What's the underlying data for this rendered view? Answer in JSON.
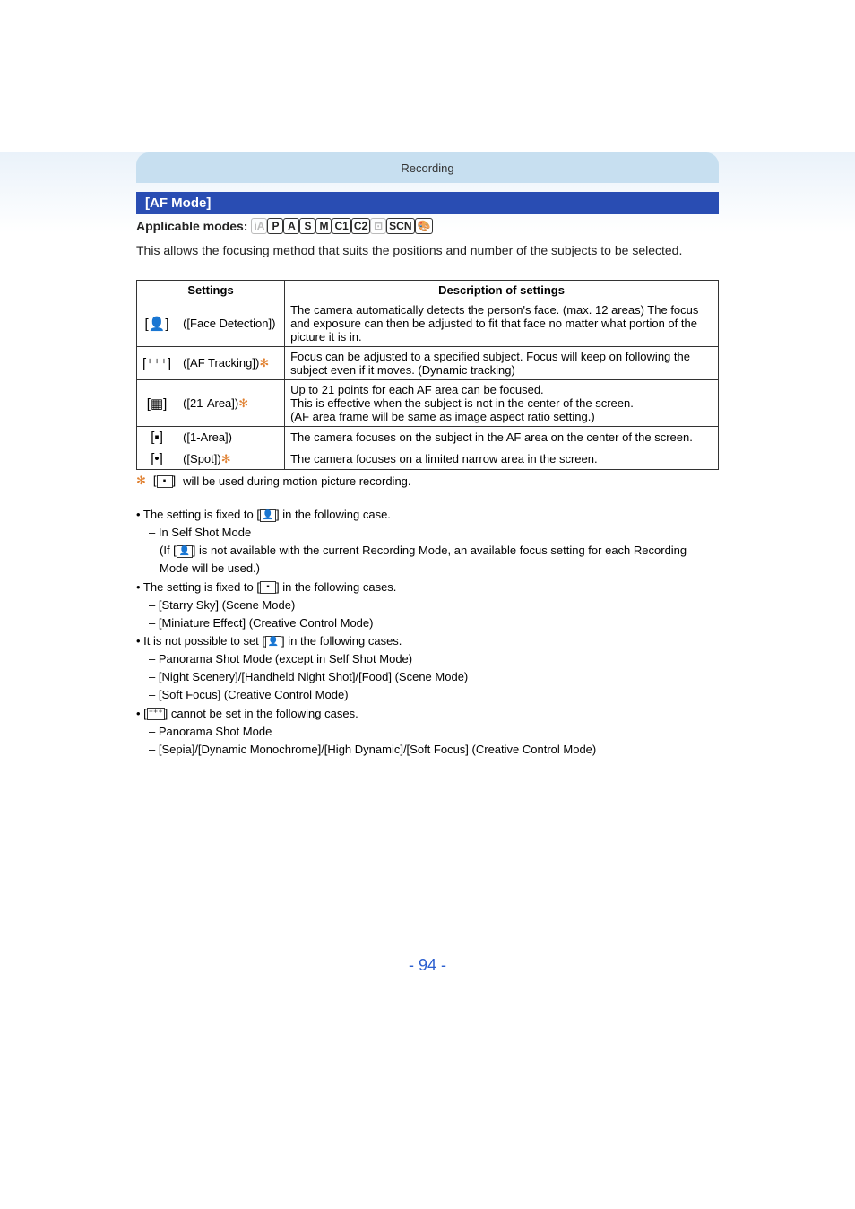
{
  "header": {
    "section": "Recording"
  },
  "title": "[AF Mode]",
  "modes": {
    "label": "Applicable modes:",
    "boxes": [
      {
        "text": "iA",
        "dim": true
      },
      {
        "text": "P",
        "dim": false
      },
      {
        "text": "A",
        "dim": false
      },
      {
        "text": "S",
        "dim": false
      },
      {
        "text": "M",
        "dim": false
      },
      {
        "text": "C1",
        "dim": false
      },
      {
        "text": "C2",
        "dim": false
      },
      {
        "text": "⊡",
        "dim": true
      },
      {
        "text": "SCN",
        "dim": false
      },
      {
        "text": "🎨",
        "dim": false
      }
    ]
  },
  "intro": "This allows the focusing method that suits the positions and number of the subjects to be selected.",
  "table": {
    "headers": [
      "Settings",
      "Description of settings"
    ],
    "rows": [
      {
        "icon": "[👤]",
        "icon_name": "face-detection-icon",
        "label": "([Face Detection])",
        "star": false,
        "desc": "The camera automatically detects the person's face. (max. 12 areas) The focus and exposure can then be adjusted to fit that face no matter what portion of the picture it is in."
      },
      {
        "icon": "[⁺⁺⁺]",
        "icon_name": "af-tracking-icon",
        "label": "([AF Tracking])",
        "star": true,
        "desc": "Focus can be adjusted to a specified subject. Focus will keep on following the subject even if it moves. (Dynamic tracking)"
      },
      {
        "icon": "[▦]",
        "icon_name": "21-area-icon",
        "label": "([21-Area])",
        "star": true,
        "desc": "Up to 21 points for each AF area can be focused.\nThis is effective when the subject is not in the center of the screen.\n(AF area frame will be same as image aspect ratio setting.)"
      },
      {
        "icon": "[▪]",
        "icon_name": "1-area-icon",
        "label": "([1-Area])",
        "star": false,
        "desc": "The camera focuses on the subject in the AF area on the center of the screen."
      },
      {
        "icon": "[•]",
        "icon_name": "spot-icon",
        "label": "([Spot])",
        "star": true,
        "desc": "The camera focuses on a limited narrow area in the screen."
      }
    ]
  },
  "footnote": {
    "star": "✻",
    "icon": "▪",
    "text": "will be used during motion picture recording."
  },
  "bullets": [
    {
      "level": 1,
      "pre": "• The setting is fixed to [",
      "icon": "👤",
      "post": "] in the following case."
    },
    {
      "level": 2,
      "pre": "– In Self Shot Mode"
    },
    {
      "level": 3,
      "pre": "(If [",
      "icon": "👤",
      "post": "] is not available with the current Recording Mode, an available focus setting for each Recording Mode will be used.)"
    },
    {
      "level": 1,
      "pre": "• The setting is fixed to [",
      "icon": "▪",
      "post": "] in the following cases."
    },
    {
      "level": 2,
      "pre": "– [Starry Sky] (Scene Mode)"
    },
    {
      "level": 2,
      "pre": "– [Miniature Effect] (Creative Control Mode)"
    },
    {
      "level": 1,
      "pre": "• It is not possible to set [",
      "icon": "👤",
      "post": "] in the following cases."
    },
    {
      "level": 2,
      "pre": "– Panorama Shot Mode (except in Self Shot Mode)"
    },
    {
      "level": 2,
      "pre": "– [Night Scenery]/[Handheld Night Shot]/[Food] (Scene Mode)"
    },
    {
      "level": 2,
      "pre": "– [Soft Focus] (Creative Control Mode)"
    },
    {
      "level": 1,
      "pre": "• [",
      "icon": "⁺⁺⁺",
      "post": "] cannot be set in the following cases."
    },
    {
      "level": 2,
      "pre": "– Panorama Shot Mode"
    },
    {
      "level": 2,
      "pre": "– [Sepia]/[Dynamic Monochrome]/[High Dynamic]/[Soft Focus] (Creative Control Mode)"
    }
  ],
  "pagenum": "- 94 -"
}
